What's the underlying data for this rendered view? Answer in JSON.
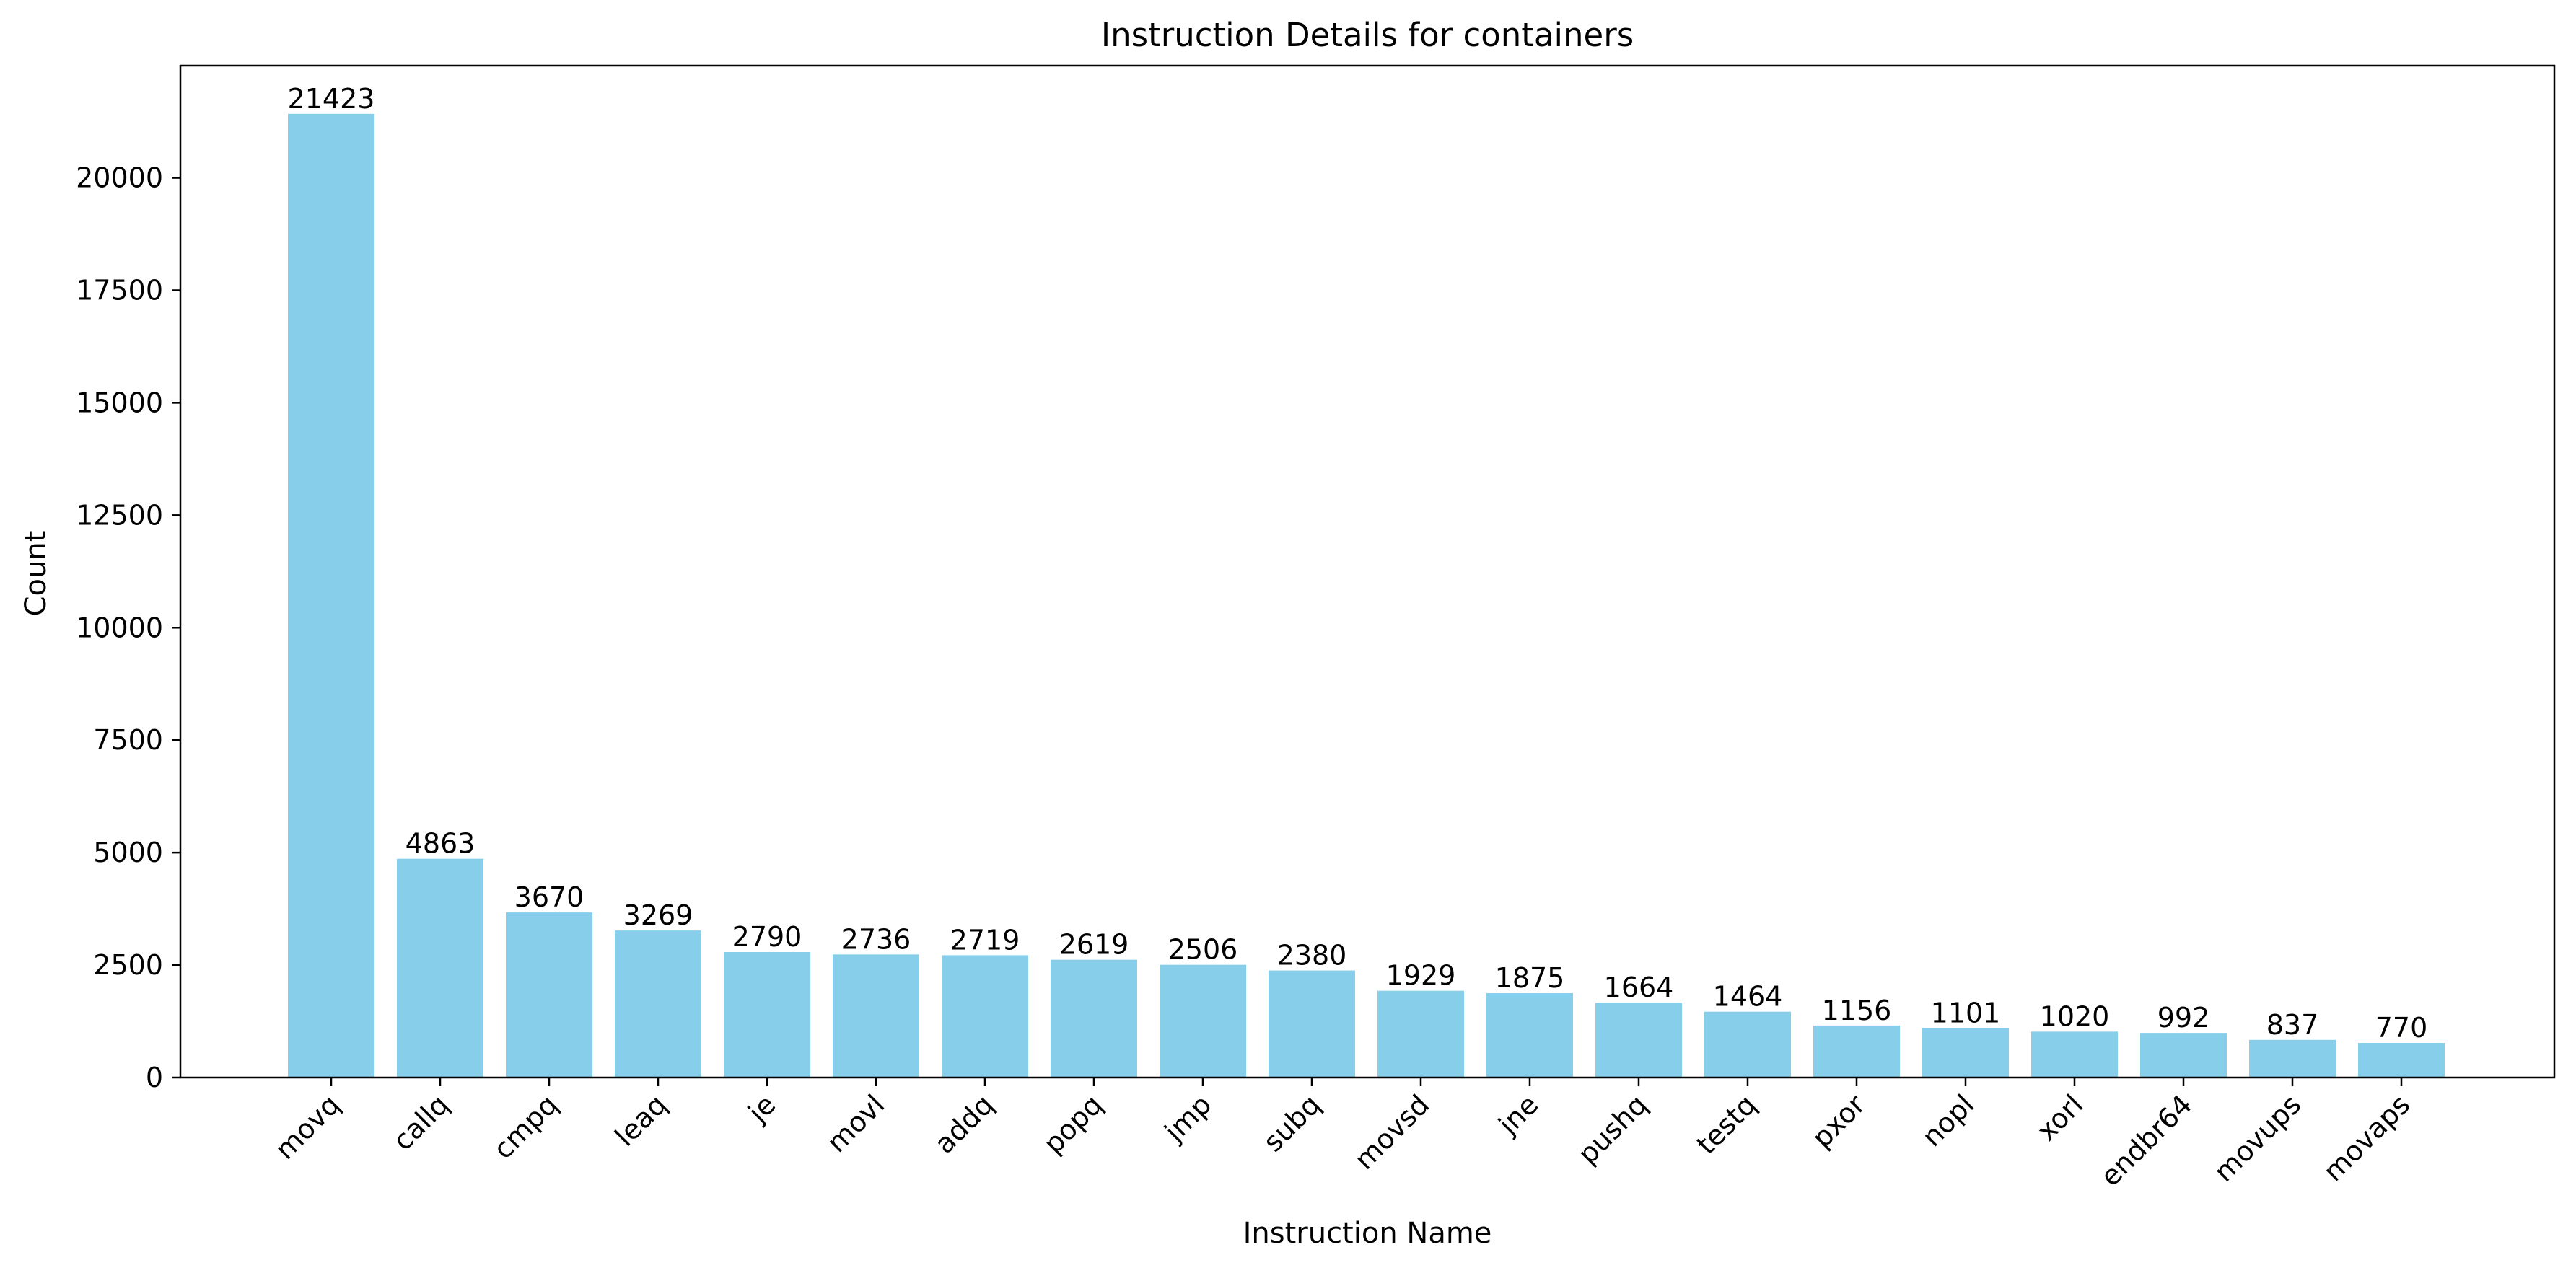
{
  "chart_data": {
    "type": "bar",
    "title": "Instruction Details for containers",
    "xlabel": "Instruction Name",
    "ylabel": "Count",
    "categories": [
      "movq",
      "callq",
      "cmpq",
      "leaq",
      "je",
      "movl",
      "addq",
      "popq",
      "jmp",
      "subq",
      "movsd",
      "jne",
      "pushq",
      "testq",
      "pxor",
      "nopl",
      "xorl",
      "endbr64",
      "movups",
      "movaps"
    ],
    "values": [
      21423,
      4863,
      3670,
      3269,
      2790,
      2736,
      2719,
      2619,
      2506,
      2380,
      1929,
      1875,
      1664,
      1464,
      1156,
      1101,
      1020,
      992,
      837,
      770
    ],
    "value_labels": [
      "21423",
      "4863",
      "3670",
      "3269",
      "2790",
      "2736",
      "2719",
      "2619",
      "2506",
      "2380",
      "1929",
      "1875",
      "1664",
      "1464",
      "1156",
      "1101",
      "1020",
      "992",
      "837",
      "770"
    ],
    "yticks": [
      0,
      2500,
      5000,
      7500,
      10000,
      12500,
      15000,
      17500,
      20000
    ],
    "ytick_labels": [
      "0",
      "2500",
      "5000",
      "7500",
      "10000",
      "12500",
      "15000",
      "17500",
      "20000"
    ],
    "ylim": [
      0,
      22494
    ],
    "bar_color": "#87ceeb",
    "grid": false,
    "legend": "none"
  }
}
